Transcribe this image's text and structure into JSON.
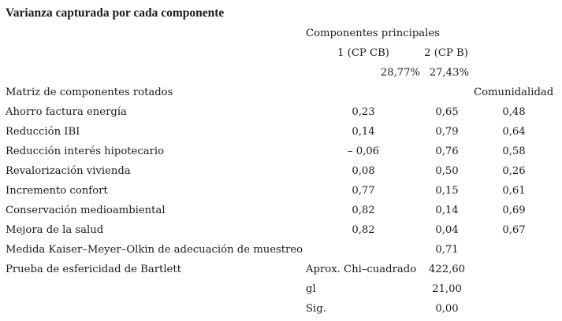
{
  "title": "Varianza capturada por cada componente",
  "header": {
    "group_label": "Componentes principales",
    "col1_label": "1 (CP CB)",
    "col2_label": "2 (CP B)",
    "col1_variance": "28,77%",
    "col2_variance": "27,43%",
    "matrix_label": "Matriz de componentes rotados",
    "communality_label": "Comunidalidad"
  },
  "rows": [
    {
      "label": "Ahorro factura energía",
      "c1": "0,23",
      "c2": "0,65",
      "com": "0,48"
    },
    {
      "label": "Reducción IBI",
      "c1": "0,14",
      "c2": "0,79",
      "com": "0,64"
    },
    {
      "label": "Reducción interés hipotecario",
      "c1": "– 0,06",
      "c2": "0,76",
      "com": "0,58"
    },
    {
      "label": "Revalorización vivienda",
      "c1": "0,08",
      "c2": "0,50",
      "com": "0,26"
    },
    {
      "label": "Incremento confort",
      "c1": "0,77",
      "c2": "0,15",
      "com": "0,61"
    },
    {
      "label": "Conservación medioambiental",
      "c1": "0,82",
      "c2": "0,14",
      "com": "0,69"
    },
    {
      "label": "Mejora de la salud",
      "c1": "0,82",
      "c2": "0,04",
      "com": "0,67"
    }
  ],
  "kmo": {
    "label": "Medida Kaiser–Meyer–Olkin de adecuación de muestreo",
    "value": "0,71"
  },
  "bartlett": {
    "label": "Prueba de esfericidad de Bartlett",
    "chi_label": "Aprox. Chi–cuadrado",
    "chi_value": "422,60",
    "gl_label": "gl",
    "gl_value": "21,00",
    "sig_label": "Sig.",
    "sig_value": "0,00"
  }
}
